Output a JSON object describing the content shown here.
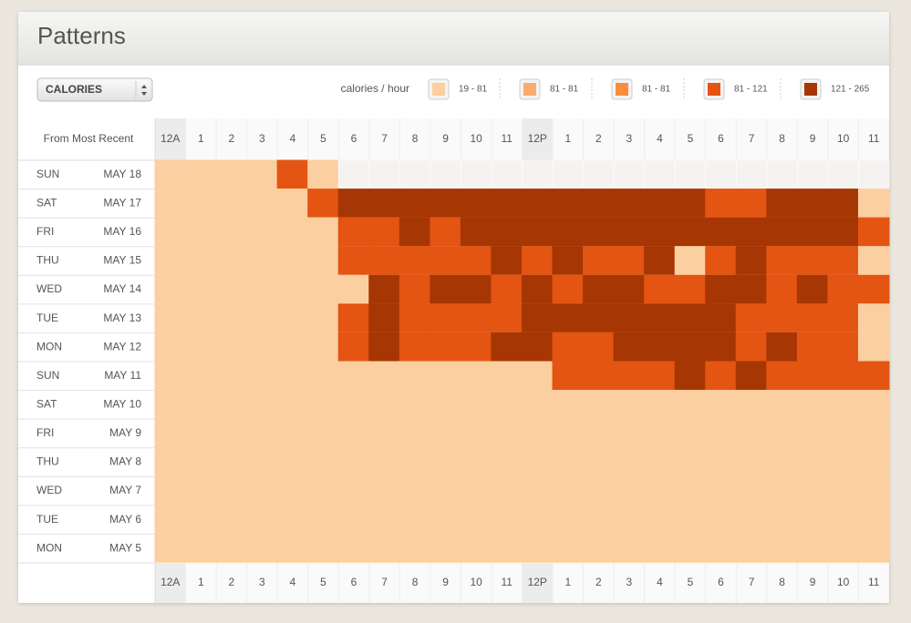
{
  "header": {
    "title": "Patterns"
  },
  "controls": {
    "metric": "CALORIES",
    "legend_label": "calories / hour",
    "legend": [
      {
        "label": "19 - 81",
        "color": "#fccfa0"
      },
      {
        "label": "81 - 81",
        "color": "#fbab6c"
      },
      {
        "label": "81 - 81",
        "color": "#f98d3c"
      },
      {
        "label": "81 - 121",
        "color": "#e45412"
      },
      {
        "label": "121 - 265",
        "color": "#a63603"
      }
    ]
  },
  "grid": {
    "corner_label": "From Most Recent",
    "hours": [
      "12A",
      "1",
      "2",
      "3",
      "4",
      "5",
      "6",
      "7",
      "8",
      "9",
      "10",
      "11",
      "12P",
      "1",
      "2",
      "3",
      "4",
      "5",
      "6",
      "7",
      "8",
      "9",
      "10",
      "11"
    ],
    "rows": [
      {
        "day": "SUN",
        "date": "MAY 18",
        "cells": [
          0,
          0,
          0,
          0,
          3,
          0,
          null,
          null,
          null,
          null,
          null,
          null,
          null,
          null,
          null,
          null,
          null,
          null,
          null,
          null,
          null,
          null,
          null,
          null
        ]
      },
      {
        "day": "SAT",
        "date": "MAY 17",
        "cells": [
          0,
          0,
          0,
          0,
          0,
          3,
          4,
          4,
          4,
          4,
          4,
          4,
          4,
          4,
          4,
          4,
          4,
          4,
          3,
          3,
          4,
          4,
          4,
          0
        ]
      },
      {
        "day": "FRI",
        "date": "MAY 16",
        "cells": [
          0,
          0,
          0,
          0,
          0,
          0,
          3,
          3,
          4,
          3,
          4,
          4,
          4,
          4,
          4,
          4,
          4,
          4,
          4,
          4,
          4,
          4,
          4,
          3
        ]
      },
      {
        "day": "THU",
        "date": "MAY 15",
        "cells": [
          0,
          0,
          0,
          0,
          0,
          0,
          3,
          3,
          3,
          3,
          3,
          4,
          3,
          4,
          3,
          3,
          4,
          0,
          3,
          4,
          3,
          3,
          3,
          0
        ]
      },
      {
        "day": "WED",
        "date": "MAY 14",
        "cells": [
          0,
          0,
          0,
          0,
          0,
          0,
          0,
          4,
          3,
          4,
          4,
          3,
          4,
          3,
          4,
          4,
          3,
          3,
          4,
          4,
          3,
          4,
          3,
          3
        ]
      },
      {
        "day": "TUE",
        "date": "MAY 13",
        "cells": [
          0,
          0,
          0,
          0,
          0,
          0,
          3,
          4,
          3,
          3,
          3,
          3,
          4,
          4,
          4,
          4,
          4,
          4,
          4,
          3,
          3,
          3,
          3,
          0
        ]
      },
      {
        "day": "MON",
        "date": "MAY 12",
        "cells": [
          0,
          0,
          0,
          0,
          0,
          0,
          3,
          4,
          3,
          3,
          3,
          4,
          4,
          3,
          3,
          4,
          4,
          4,
          4,
          3,
          4,
          3,
          3,
          0
        ]
      },
      {
        "day": "SUN",
        "date": "MAY 11",
        "cells": [
          0,
          0,
          0,
          0,
          0,
          0,
          0,
          0,
          0,
          0,
          0,
          0,
          0,
          3,
          3,
          3,
          3,
          4,
          3,
          4,
          3,
          3,
          3,
          3
        ]
      },
      {
        "day": "SAT",
        "date": "MAY 10",
        "cells": [
          0,
          0,
          0,
          0,
          0,
          0,
          0,
          0,
          0,
          0,
          0,
          0,
          0,
          0,
          0,
          0,
          0,
          0,
          0,
          0,
          0,
          0,
          0,
          0
        ]
      },
      {
        "day": "FRI",
        "date": "MAY 9",
        "cells": [
          0,
          0,
          0,
          0,
          0,
          0,
          0,
          0,
          0,
          0,
          0,
          0,
          0,
          0,
          0,
          0,
          0,
          0,
          0,
          0,
          0,
          0,
          0,
          0
        ]
      },
      {
        "day": "THU",
        "date": "MAY 8",
        "cells": [
          0,
          0,
          0,
          0,
          0,
          0,
          0,
          0,
          0,
          0,
          0,
          0,
          0,
          0,
          0,
          0,
          0,
          0,
          0,
          0,
          0,
          0,
          0,
          0
        ]
      },
      {
        "day": "WED",
        "date": "MAY 7",
        "cells": [
          0,
          0,
          0,
          0,
          0,
          0,
          0,
          0,
          0,
          0,
          0,
          0,
          0,
          0,
          0,
          0,
          0,
          0,
          0,
          0,
          0,
          0,
          0,
          0
        ]
      },
      {
        "day": "TUE",
        "date": "MAY 6",
        "cells": [
          0,
          0,
          0,
          0,
          0,
          0,
          0,
          0,
          0,
          0,
          0,
          0,
          0,
          0,
          0,
          0,
          0,
          0,
          0,
          0,
          0,
          0,
          0,
          0
        ]
      },
      {
        "day": "MON",
        "date": "MAY 5",
        "cells": [
          0,
          0,
          0,
          0,
          0,
          0,
          0,
          0,
          0,
          0,
          0,
          0,
          0,
          0,
          0,
          0,
          0,
          0,
          0,
          0,
          0,
          0,
          0,
          0
        ]
      }
    ]
  }
}
